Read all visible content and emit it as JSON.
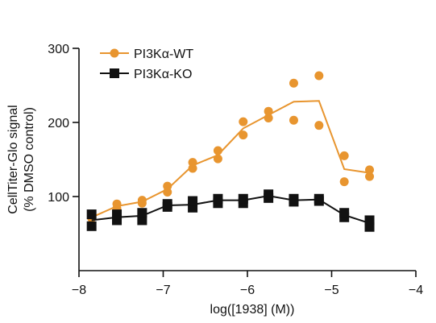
{
  "chart_data": {
    "type": "scatter",
    "xlabel": "log([1938] (M))",
    "ylabel_line1": "CellTiter-Glo signal",
    "ylabel_line2": "(% DMSO control)",
    "xlim": [
      -8,
      -4
    ],
    "ylim": [
      0,
      300
    ],
    "x_ticks": [
      -8,
      -7,
      -6,
      -5,
      -4
    ],
    "x_tick_labels": [
      "−8",
      "−7",
      "−6",
      "−5",
      "−4"
    ],
    "y_ticks": [
      100,
      200,
      300
    ],
    "y_tick_labels": [
      "100",
      "200",
      "300"
    ],
    "legend_position": "top-left",
    "series": [
      {
        "name": "PI3Kα-WT",
        "color": "#E8952F",
        "marker": "circle",
        "points": [
          [
            -7.85,
            71
          ],
          [
            -7.85,
            74
          ],
          [
            -7.55,
            84
          ],
          [
            -7.55,
            90
          ],
          [
            -7.25,
            91
          ],
          [
            -7.25,
            95
          ],
          [
            -6.95,
            106
          ],
          [
            -6.95,
            114
          ],
          [
            -6.65,
            138
          ],
          [
            -6.65,
            146
          ],
          [
            -6.35,
            151
          ],
          [
            -6.35,
            162
          ],
          [
            -6.05,
            183
          ],
          [
            -6.05,
            201
          ],
          [
            -5.75,
            206
          ],
          [
            -5.75,
            215
          ],
          [
            -5.45,
            203
          ],
          [
            -5.45,
            253
          ],
          [
            -5.15,
            196
          ],
          [
            -5.15,
            263
          ],
          [
            -4.85,
            120
          ],
          [
            -4.85,
            155
          ],
          [
            -4.55,
            127
          ],
          [
            -4.55,
            136
          ]
        ],
        "fit": [
          [
            -7.85,
            72
          ],
          [
            -7.55,
            87
          ],
          [
            -7.25,
            93
          ],
          [
            -6.95,
            110
          ],
          [
            -6.65,
            142
          ],
          [
            -6.35,
            156
          ],
          [
            -6.05,
            192
          ],
          [
            -5.75,
            210
          ],
          [
            -5.45,
            228
          ],
          [
            -5.15,
            229
          ],
          [
            -4.85,
            137
          ],
          [
            -4.55,
            132
          ]
        ]
      },
      {
        "name": "PI3Kα-KO",
        "color": "#111111",
        "marker": "square",
        "points": [
          [
            -7.85,
            60
          ],
          [
            -7.85,
            76
          ],
          [
            -7.55,
            68
          ],
          [
            -7.55,
            76
          ],
          [
            -7.25,
            68
          ],
          [
            -7.25,
            78
          ],
          [
            -6.95,
            86
          ],
          [
            -6.95,
            90
          ],
          [
            -6.65,
            85
          ],
          [
            -6.65,
            94
          ],
          [
            -6.35,
            91
          ],
          [
            -6.35,
            97
          ],
          [
            -6.05,
            91
          ],
          [
            -6.05,
            97
          ],
          [
            -5.75,
            98
          ],
          [
            -5.75,
            103
          ],
          [
            -5.45,
            93
          ],
          [
            -5.45,
            97
          ],
          [
            -5.15,
            94
          ],
          [
            -5.15,
            97
          ],
          [
            -4.85,
            72
          ],
          [
            -4.85,
            78
          ],
          [
            -4.55,
            59
          ],
          [
            -4.55,
            68
          ]
        ],
        "fit": [
          [
            -7.85,
            68
          ],
          [
            -7.55,
            72
          ],
          [
            -7.25,
            74
          ],
          [
            -6.95,
            88
          ],
          [
            -6.65,
            89
          ],
          [
            -6.35,
            95
          ],
          [
            -6.05,
            95
          ],
          [
            -5.75,
            101
          ],
          [
            -5.45,
            95
          ],
          [
            -5.15,
            96
          ],
          [
            -4.85,
            75
          ],
          [
            -4.55,
            64
          ]
        ]
      }
    ]
  }
}
